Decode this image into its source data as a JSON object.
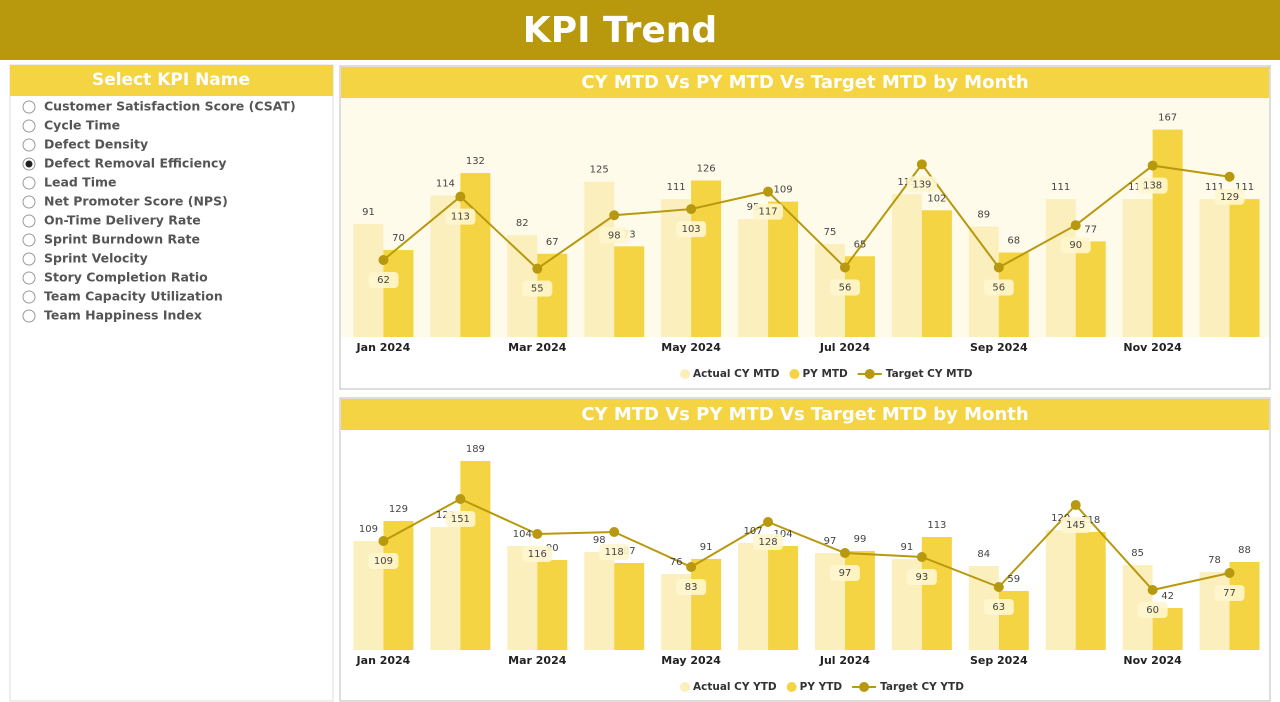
{
  "header": {
    "title": "KPI Trend"
  },
  "slicer": {
    "title": "Select KPI Name",
    "items": [
      "Customer Satisfaction Score (CSAT)",
      "Cycle Time",
      "Defect Density",
      "Defect Removal Efficiency",
      "Lead Time",
      "Net Promoter Score (NPS)",
      "On-Time Delivery Rate",
      "Sprint Burndown Rate",
      "Sprint Velocity",
      "Story Completion Ratio",
      "Team Capacity Utilization",
      "Team Happiness Index"
    ],
    "selected_index": 3
  },
  "chart_data": [
    {
      "type": "bar",
      "title": "CY MTD Vs PY MTD Vs Target MTD by Month",
      "categories": [
        "Jan 2024",
        null,
        "Mar 2024",
        null,
        "May 2024",
        null,
        "Jul 2024",
        null,
        "Sep 2024",
        null,
        "Nov 2024",
        null
      ],
      "ylim": [
        0,
        190
      ],
      "series": [
        {
          "name": "Actual CY MTD",
          "color": "#fbefbd",
          "type": "bar",
          "values": [
            91,
            114,
            82,
            125,
            111,
            95,
            75,
            115,
            89,
            111,
            111,
            111
          ]
        },
        {
          "name": "PY MTD",
          "color": "#f5d443",
          "type": "bar",
          "values": [
            70,
            132,
            67,
            73,
            126,
            109,
            65,
            102,
            68,
            77,
            167,
            111
          ]
        },
        {
          "name": "Target CY MTD",
          "color": "#b8980f",
          "type": "line",
          "values": [
            62,
            113,
            55,
            98,
            103,
            117,
            56,
            139,
            56,
            90,
            138,
            129
          ]
        }
      ]
    },
    {
      "type": "bar",
      "title": "CY MTD Vs PY MTD Vs Target MTD by Month",
      "categories": [
        "Jan 2024",
        null,
        "Mar 2024",
        null,
        "May 2024",
        null,
        "Jul 2024",
        null,
        "Sep 2024",
        null,
        "Nov 2024",
        null
      ],
      "ylim": [
        0,
        210
      ],
      "series": [
        {
          "name": "Actual CY YTD",
          "color": "#fbefbd",
          "type": "bar",
          "values": [
            109,
            123,
            104,
            98,
            76,
            107,
            97,
            91,
            84,
            120,
            85,
            78
          ]
        },
        {
          "name": "PY YTD",
          "color": "#f5d443",
          "type": "bar",
          "values": [
            129,
            189,
            90,
            87,
            91,
            104,
            99,
            113,
            59,
            118,
            42,
            88
          ]
        },
        {
          "name": "Target CY YTD",
          "color": "#b8980f",
          "type": "line",
          "values": [
            109,
            151,
            116,
            118,
            83,
            128,
            97,
            93,
            63,
            145,
            60,
            77
          ]
        }
      ]
    }
  ]
}
